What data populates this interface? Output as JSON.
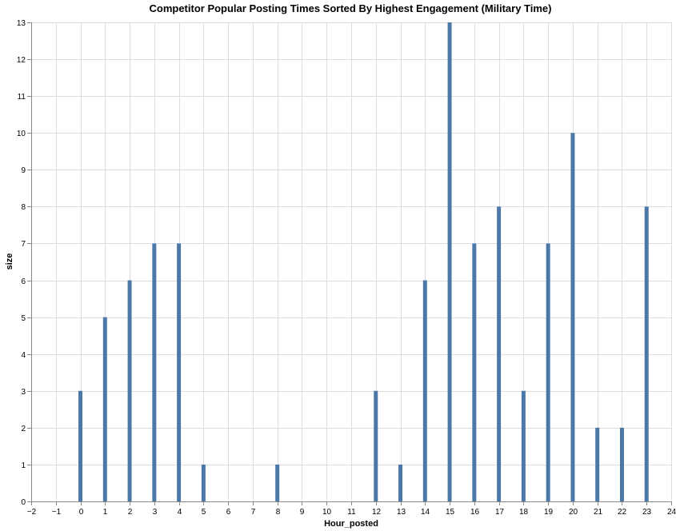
{
  "chart_data": {
    "type": "bar",
    "title": "Competitor Popular Posting Times Sorted By Highest Engagement (Military Time)",
    "xlabel": "Hour_posted",
    "ylabel": "size",
    "xlim": [
      -2,
      24
    ],
    "ylim": [
      0,
      13
    ],
    "x_ticks": [
      "−2",
      "−1",
      "0",
      "1",
      "2",
      "3",
      "4",
      "5",
      "6",
      "7",
      "8",
      "9",
      "10",
      "11",
      "12",
      "13",
      "14",
      "15",
      "16",
      "17",
      "18",
      "19",
      "20",
      "21",
      "22",
      "23",
      "24"
    ],
    "y_ticks": [
      "0",
      "1",
      "2",
      "3",
      "4",
      "5",
      "6",
      "7",
      "8",
      "9",
      "10",
      "11",
      "12",
      "13"
    ],
    "grid": true,
    "bar_color": "#4c78a8",
    "points": [
      {
        "x": 0,
        "y": 3
      },
      {
        "x": 1,
        "y": 5
      },
      {
        "x": 2,
        "y": 6
      },
      {
        "x": 3,
        "y": 7
      },
      {
        "x": 4,
        "y": 7
      },
      {
        "x": 5,
        "y": 1
      },
      {
        "x": 8,
        "y": 1
      },
      {
        "x": 12,
        "y": 3
      },
      {
        "x": 13,
        "y": 1
      },
      {
        "x": 14,
        "y": 6
      },
      {
        "x": 15,
        "y": 13
      },
      {
        "x": 16,
        "y": 7
      },
      {
        "x": 17,
        "y": 8
      },
      {
        "x": 18,
        "y": 3
      },
      {
        "x": 19,
        "y": 7
      },
      {
        "x": 20,
        "y": 10
      },
      {
        "x": 21,
        "y": 2
      },
      {
        "x": 22,
        "y": 2
      },
      {
        "x": 23,
        "y": 8
      }
    ]
  }
}
